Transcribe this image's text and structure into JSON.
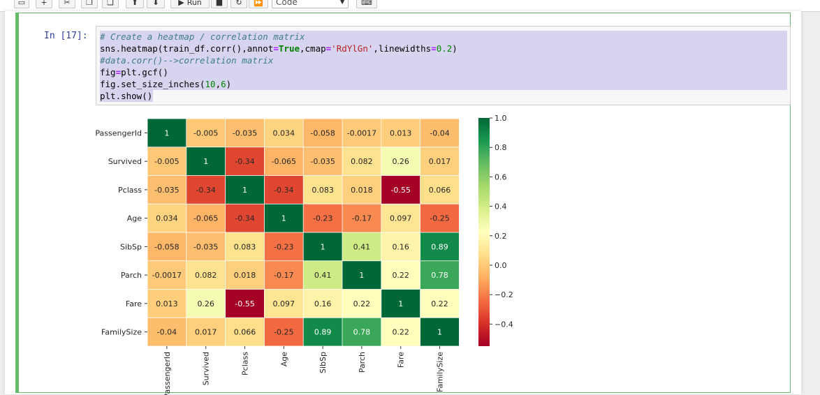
{
  "toolbar": {
    "run_label": "Run",
    "cell_type": "Code"
  },
  "cell": {
    "prompt": "In [17]:",
    "code_lines": [
      "# Create a heatmap / correlation matrix",
      "sns.heatmap(train_df.corr(),annot=True,cmap='RdYlGn',linewidths=0.2)",
      "#data.corr()-->correlation matrix",
      "fig=plt.gcf()",
      "fig.set_size_inches(10,6)",
      "plt.show()"
    ]
  },
  "chart_data": {
    "type": "heatmap",
    "colormap": "RdYlGn",
    "labels": [
      "PassengerId",
      "Survived",
      "Pclass",
      "Age",
      "SibSp",
      "Parch",
      "Fare",
      "FamilySize"
    ],
    "matrix": [
      [
        1,
        -0.005,
        -0.035,
        0.034,
        -0.058,
        -0.0017,
        0.013,
        -0.04
      ],
      [
        -0.005,
        1,
        -0.34,
        -0.065,
        -0.035,
        0.082,
        0.26,
        0.017
      ],
      [
        -0.035,
        -0.34,
        1,
        -0.34,
        0.083,
        0.018,
        -0.55,
        0.066
      ],
      [
        0.034,
        -0.065,
        -0.34,
        1,
        -0.23,
        -0.17,
        0.097,
        -0.25
      ],
      [
        -0.058,
        -0.035,
        0.083,
        -0.23,
        1,
        0.41,
        0.16,
        0.89
      ],
      [
        -0.0017,
        0.082,
        0.018,
        -0.17,
        0.41,
        1,
        0.22,
        0.78
      ],
      [
        0.013,
        0.26,
        -0.55,
        0.097,
        0.16,
        0.22,
        1,
        0.22
      ],
      [
        -0.04,
        0.017,
        0.066,
        -0.25,
        0.89,
        0.78,
        0.22,
        1
      ]
    ],
    "cell_labels": [
      [
        "1",
        "-0.005",
        "-0.035",
        "0.034",
        "-0.058",
        "-0.0017",
        "0.013",
        "-0.04"
      ],
      [
        "-0.005",
        "1",
        "-0.34",
        "-0.065",
        "-0.035",
        "0.082",
        "0.26",
        "0.017"
      ],
      [
        "-0.035",
        "-0.34",
        "1",
        "-0.34",
        "0.083",
        "0.018",
        "-0.55",
        "0.066"
      ],
      [
        "0.034",
        "-0.065",
        "-0.34",
        "1",
        "-0.23",
        "-0.17",
        "0.097",
        "-0.25"
      ],
      [
        "-0.058",
        "-0.035",
        "0.083",
        "-0.23",
        "1",
        "0.41",
        "0.16",
        "0.89"
      ],
      [
        "-0.0017",
        "0.082",
        "0.018",
        "-0.17",
        "0.41",
        "1",
        "0.22",
        "0.78"
      ],
      [
        "0.013",
        "0.26",
        "-0.55",
        "0.097",
        "0.16",
        "0.22",
        "1",
        "0.22"
      ],
      [
        "-0.04",
        "0.017",
        "0.066",
        "-0.25",
        "0.89",
        "0.78",
        "0.22",
        "1"
      ]
    ],
    "colorbar": {
      "vmin": -0.55,
      "vmax": 1.0,
      "ticks": [
        1.0,
        0.8,
        0.6,
        0.4,
        0.2,
        0.0,
        -0.2,
        -0.4
      ],
      "tick_labels": [
        "1.0",
        "0.8",
        "0.6",
        "0.4",
        "0.2",
        "0.0",
        "−0.2",
        "−0.4"
      ]
    }
  }
}
